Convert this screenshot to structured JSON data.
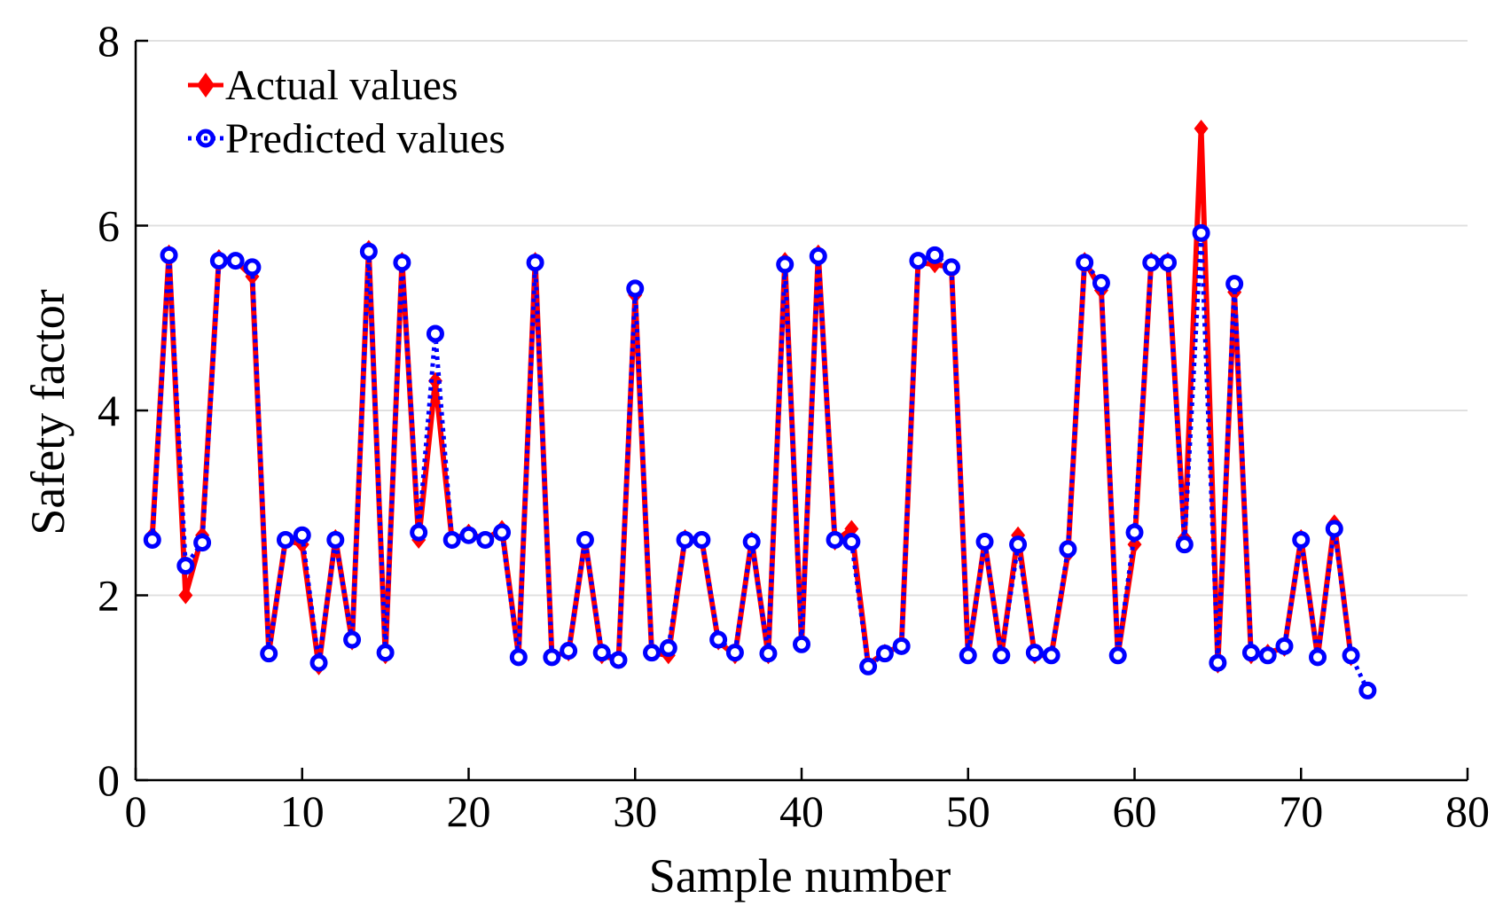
{
  "chart_data": {
    "type": "line",
    "title": "",
    "xlabel": "Sample number",
    "ylabel": "Safety factor",
    "xlim": [
      0,
      80
    ],
    "ylim": [
      0,
      8
    ],
    "xticks": [
      0,
      10,
      20,
      30,
      40,
      50,
      60,
      70,
      80
    ],
    "yticks": [
      0,
      2,
      4,
      6,
      8
    ],
    "grid": "horizontal",
    "legend_position": "top-left",
    "series": [
      {
        "name": "Actual values",
        "color": "#ff0000",
        "line": "solid",
        "marker": "diamond",
        "x": [
          1,
          2,
          3,
          4,
          5,
          6,
          7,
          8,
          9,
          10,
          11,
          12,
          13,
          14,
          15,
          16,
          17,
          18,
          19,
          20,
          21,
          22,
          23,
          24,
          25,
          26,
          27,
          28,
          29,
          30,
          31,
          32,
          33,
          34,
          35,
          36,
          37,
          38,
          39,
          40,
          41,
          42,
          43,
          44,
          45,
          46,
          47,
          48,
          49,
          50,
          51,
          52,
          53,
          54,
          55,
          56,
          57,
          58,
          59,
          60,
          61,
          62,
          63,
          64,
          65,
          66,
          67,
          68,
          69,
          70,
          71,
          72,
          73
        ],
        "values": [
          2.65,
          5.7,
          2.0,
          2.65,
          5.65,
          5.62,
          5.45,
          1.38,
          2.6,
          2.55,
          1.23,
          2.62,
          1.5,
          5.75,
          1.35,
          5.62,
          2.6,
          4.32,
          2.6,
          2.68,
          2.6,
          2.72,
          1.35,
          5.62,
          1.35,
          1.38,
          2.6,
          1.35,
          1.3,
          5.25,
          1.38,
          1.35,
          2.62,
          2.6,
          1.5,
          1.35,
          2.6,
          1.35,
          5.62,
          1.47,
          5.7,
          2.58,
          2.72,
          1.25,
          1.38,
          1.45,
          5.6,
          5.58,
          5.55,
          1.35,
          2.58,
          1.35,
          2.65,
          1.35,
          1.35,
          2.45,
          5.62,
          5.3,
          1.35,
          2.55,
          5.62,
          5.62,
          2.62,
          7.05,
          1.25,
          5.28,
          1.35,
          1.38,
          1.43,
          2.62,
          1.33,
          2.78,
          1.33
        ]
      },
      {
        "name": "Predicted values",
        "color": "#0000ff",
        "line": "dotted",
        "marker": "circle",
        "x": [
          1,
          2,
          3,
          4,
          5,
          6,
          7,
          8,
          9,
          10,
          11,
          12,
          13,
          14,
          15,
          16,
          17,
          18,
          19,
          20,
          21,
          22,
          23,
          24,
          25,
          26,
          27,
          28,
          29,
          30,
          31,
          32,
          33,
          34,
          35,
          36,
          37,
          38,
          39,
          40,
          41,
          42,
          43,
          44,
          45,
          46,
          47,
          48,
          49,
          50,
          51,
          52,
          53,
          54,
          55,
          56,
          57,
          58,
          59,
          60,
          61,
          62,
          63,
          64,
          65,
          66,
          67,
          68,
          69,
          70,
          71,
          72,
          73,
          74
        ],
        "values": [
          2.6,
          5.68,
          2.32,
          2.57,
          5.62,
          5.62,
          5.55,
          1.37,
          2.6,
          2.65,
          1.27,
          2.6,
          1.52,
          5.72,
          1.38,
          5.6,
          2.68,
          4.83,
          2.6,
          2.65,
          2.6,
          2.68,
          1.33,
          5.6,
          1.33,
          1.4,
          2.6,
          1.38,
          1.3,
          5.32,
          1.38,
          1.43,
          2.6,
          2.6,
          1.52,
          1.38,
          2.58,
          1.37,
          5.58,
          1.47,
          5.67,
          2.6,
          2.58,
          1.23,
          1.37,
          1.45,
          5.62,
          5.68,
          5.55,
          1.35,
          2.58,
          1.35,
          2.55,
          1.38,
          1.35,
          2.5,
          5.6,
          5.38,
          1.35,
          2.68,
          5.6,
          5.6,
          2.55,
          5.92,
          1.27,
          5.37,
          1.38,
          1.35,
          1.45,
          2.6,
          1.33,
          2.72,
          1.35,
          0.97
        ]
      }
    ]
  }
}
